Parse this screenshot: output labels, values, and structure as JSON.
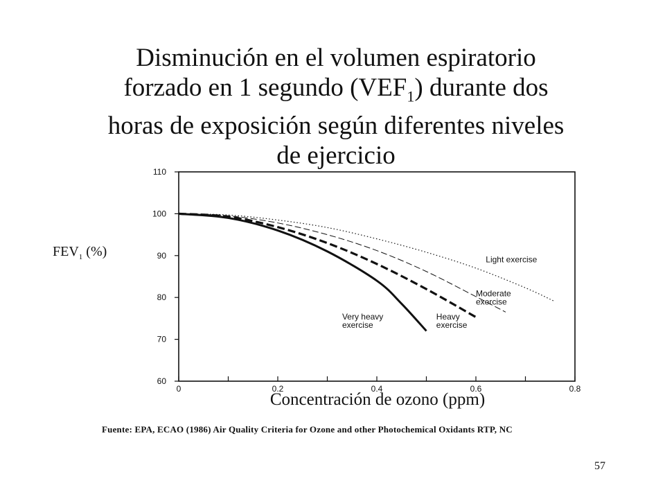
{
  "title": {
    "line1": "Disminución en el volumen espiratorio",
    "line2_pre": "forzado en 1 segundo (VEF",
    "line2_sub": "1",
    "line2_post": ") durante dos",
    "line3": "horas de exposición según diferentes niveles",
    "line4": "de ejercicio"
  },
  "ylabel": {
    "pre": "FEV",
    "sub": "1",
    "post": " (%)"
  },
  "xlabel": "Concentración de ozono (ppm)",
  "source": "Fuente:  EPA, ECAO (1986) Air Quality Criteria for Ozone and other Photochemical Oxidants  RTP, NC",
  "page_number": "57",
  "chart_data": {
    "type": "line",
    "xlim": [
      0,
      0.8
    ],
    "ylim": [
      60,
      110
    ],
    "x_tick_labels": [
      "0",
      "0.2",
      "0.4",
      "0.6",
      "0.8"
    ],
    "y_tick_labels": [
      "60",
      "70",
      "80",
      "90",
      "100",
      "110"
    ],
    "grid": false,
    "series": [
      {
        "name": "Light exercise",
        "style": "dotted",
        "x": [
          0,
          0.1,
          0.2,
          0.3,
          0.4,
          0.5,
          0.6,
          0.7,
          0.76
        ],
        "y": [
          100,
          99.7,
          98.5,
          96.7,
          94.0,
          90.8,
          87.0,
          82.3,
          79.0
        ]
      },
      {
        "name": "Moderate exercise",
        "style": "thin-dashed",
        "x": [
          0,
          0.1,
          0.2,
          0.3,
          0.4,
          0.5,
          0.6,
          0.66
        ],
        "y": [
          100,
          99.5,
          97.8,
          95.0,
          91.2,
          86.2,
          80.2,
          76.5
        ]
      },
      {
        "name": "Heavy exercise",
        "style": "thick-dashed",
        "x": [
          0,
          0.1,
          0.2,
          0.3,
          0.4,
          0.5,
          0.6
        ],
        "y": [
          100,
          99.3,
          96.8,
          93.0,
          88.0,
          82.0,
          75.3
        ]
      },
      {
        "name": "Very heavy exercise",
        "style": "solid",
        "x": [
          0,
          0.1,
          0.2,
          0.3,
          0.4,
          0.45,
          0.5
        ],
        "y": [
          100,
          99.0,
          96.0,
          91.0,
          84.0,
          78.5,
          72.0
        ]
      }
    ],
    "curve_labels": [
      {
        "series": "Light exercise",
        "lines": [
          "Light exercise"
        ],
        "x": 0.62,
        "y": 88.4
      },
      {
        "series": "Moderate exercise",
        "lines": [
          "Moderate",
          "exercise"
        ],
        "x": 0.6,
        "y": 80.3
      },
      {
        "series": "Heavy exercise",
        "lines": [
          "Heavy",
          "exercise"
        ],
        "x": 0.52,
        "y": 74.7
      },
      {
        "series": "Very heavy exercise",
        "lines": [
          "Very heavy",
          "exercise"
        ],
        "x": 0.33,
        "y": 74.7
      }
    ]
  }
}
